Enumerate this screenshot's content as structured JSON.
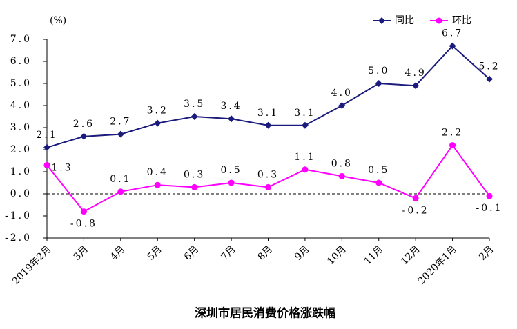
{
  "chart_data": {
    "type": "line",
    "title": "深圳市居民消费价格涨跌幅",
    "y_unit": "(%)",
    "categories": [
      "2019年2月",
      "3月",
      "4月",
      "5月",
      "6月",
      "7月",
      "8月",
      "9月",
      "10月",
      "11月",
      "12月",
      "2020年1月",
      "2月"
    ],
    "series": [
      {
        "name": "同比",
        "color": "#1b1b7d",
        "marker": "diamond",
        "values": [
          2.1,
          2.6,
          2.7,
          3.2,
          3.5,
          3.4,
          3.1,
          3.1,
          4.0,
          5.0,
          4.9,
          6.7,
          5.2
        ],
        "value_labels": [
          "2.1",
          "2.6",
          "2.7",
          "3.2",
          "3.5",
          "3.4",
          "3.1",
          "3.1",
          "4.0",
          "5.0",
          "4.9",
          "6.7",
          "5.2"
        ]
      },
      {
        "name": "环比",
        "color": "#ff00ff",
        "marker": "circle",
        "values": [
          1.3,
          -0.8,
          0.1,
          0.4,
          0.3,
          0.5,
          0.3,
          1.1,
          0.8,
          0.5,
          -0.2,
          2.2,
          -0.1
        ],
        "value_labels": [
          "1.3",
          "-0.8",
          "0.1",
          "0.4",
          "0.3",
          "0.5",
          "0.3",
          "1.1",
          "0.8",
          "0.5",
          "-0.2",
          "2.2",
          "-0.1"
        ]
      }
    ],
    "ylim": [
      -2,
      7
    ],
    "yticks": [
      {
        "value": 7,
        "label": "7.0"
      },
      {
        "value": 6,
        "label": "6.0"
      },
      {
        "value": 5,
        "label": "5.0"
      },
      {
        "value": 4,
        "label": "4.0"
      },
      {
        "value": 3,
        "label": "3.0"
      },
      {
        "value": 2,
        "label": "2.0"
      },
      {
        "value": 1,
        "label": "1.0"
      },
      {
        "value": 0,
        "label": "0.0"
      },
      {
        "value": -1,
        "label": "-1.0"
      },
      {
        "value": -2,
        "label": "-2.0"
      }
    ],
    "legend": "top-right"
  }
}
